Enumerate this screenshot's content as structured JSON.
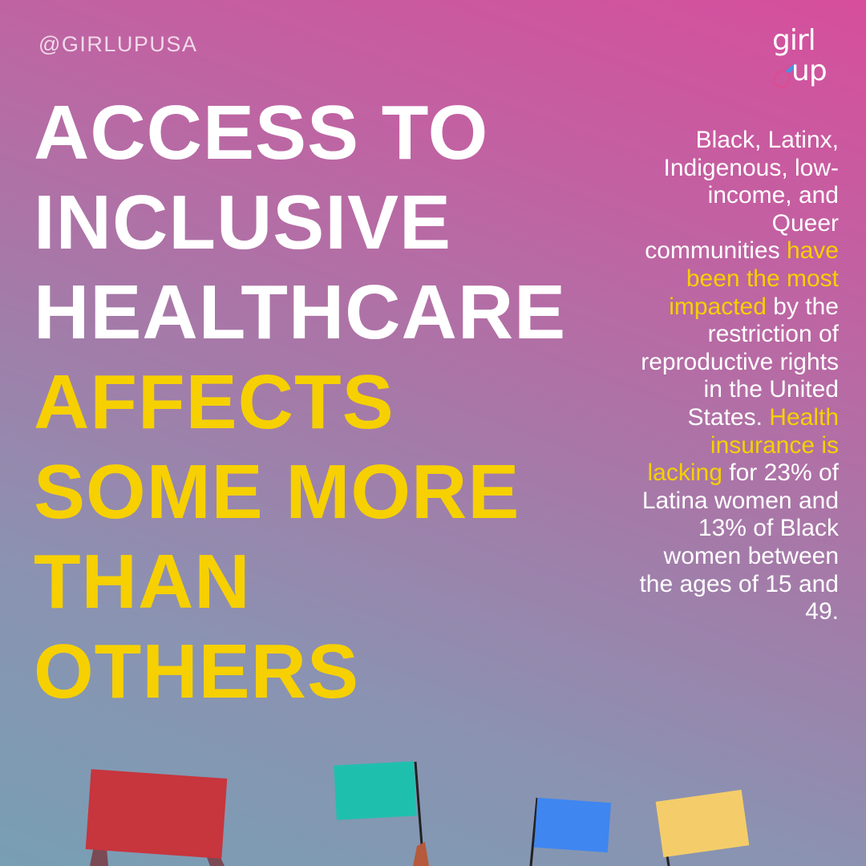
{
  "handle": "@GIRLUPUSA",
  "logo": {
    "line1": "girl",
    "line2": "up"
  },
  "headline": {
    "white_lines": [
      "ACCESS TO",
      "INCLUSIVE",
      "HEALTHCARE"
    ],
    "yellow_lines": [
      "AFFECTS",
      "SOME MORE",
      "THAN",
      "OTHERS"
    ]
  },
  "body": {
    "segments": [
      {
        "text": "Black, Latinx, Indigenous, low-income, and Queer communities",
        "highlight": false
      },
      {
        "text": "have been the most impacted",
        "highlight": true
      },
      {
        "text": "by the restriction of reproductive rights in the United States.",
        "highlight": false
      },
      {
        "text": "Health insurance is lacking",
        "highlight": true
      },
      {
        "text": "for 23% of Latina women and 13% of Black women between the ages of 15 and 49.",
        "highlight": false
      }
    ]
  }
}
